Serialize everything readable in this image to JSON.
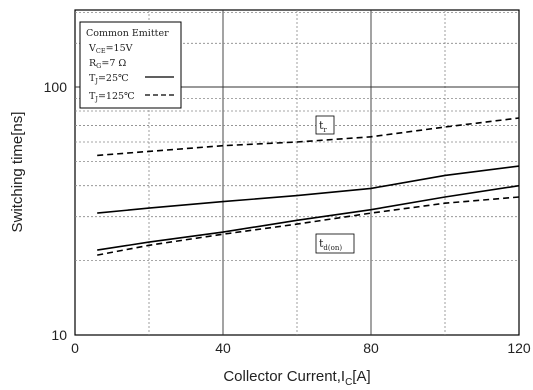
{
  "chart_data": {
    "type": "line",
    "xlabel": "Collector Current,I",
    "xlabel_sub": "C",
    "xlabel_unit": "[A]",
    "ylabel": "Switching time[ns]",
    "xlim": [
      0,
      120
    ],
    "ylim": [
      10,
      200
    ],
    "y_scale": "log",
    "x_ticks": [
      "0",
      "40",
      "80",
      "120"
    ],
    "y_ticks": [
      "10",
      "100"
    ],
    "grid": true,
    "legend": {
      "title": "Common Emitter",
      "conditions": [
        {
          "text": "V",
          "sub": "CE",
          "rest": "=15V"
        },
        {
          "text": "R",
          "sub": "G",
          "rest": "=7 Ω"
        }
      ],
      "items": [
        {
          "text": "T",
          "sub": "J",
          "rest": "=25℃",
          "style": "solid"
        },
        {
          "text": "T",
          "sub": "J",
          "rest": "=125℃",
          "style": "dashed"
        }
      ]
    },
    "annotations": [
      {
        "text": "t",
        "sub": "r"
      },
      {
        "text": "t",
        "sub": "d(on)"
      }
    ],
    "series": [
      {
        "name": "tr, TJ=25℃",
        "style": "solid",
        "x": [
          6,
          20,
          40,
          60,
          80,
          100,
          120
        ],
        "y": [
          31,
          32.5,
          34.5,
          36.5,
          39,
          44,
          48
        ]
      },
      {
        "name": "tr, TJ=125℃",
        "style": "dashed",
        "x": [
          6,
          20,
          40,
          60,
          80,
          100,
          120
        ],
        "y": [
          53,
          55,
          58,
          60,
          63,
          69,
          75
        ]
      },
      {
        "name": "td(on), TJ=25℃",
        "style": "solid",
        "x": [
          6,
          20,
          40,
          60,
          80,
          100,
          120
        ],
        "y": [
          22,
          23.7,
          26,
          29,
          32,
          36,
          40
        ]
      },
      {
        "name": "td(on), TJ=125℃",
        "style": "dashed",
        "x": [
          6,
          20,
          40,
          60,
          80,
          100,
          120
        ],
        "y": [
          21,
          23,
          25.5,
          28,
          31,
          34,
          36
        ]
      }
    ]
  }
}
